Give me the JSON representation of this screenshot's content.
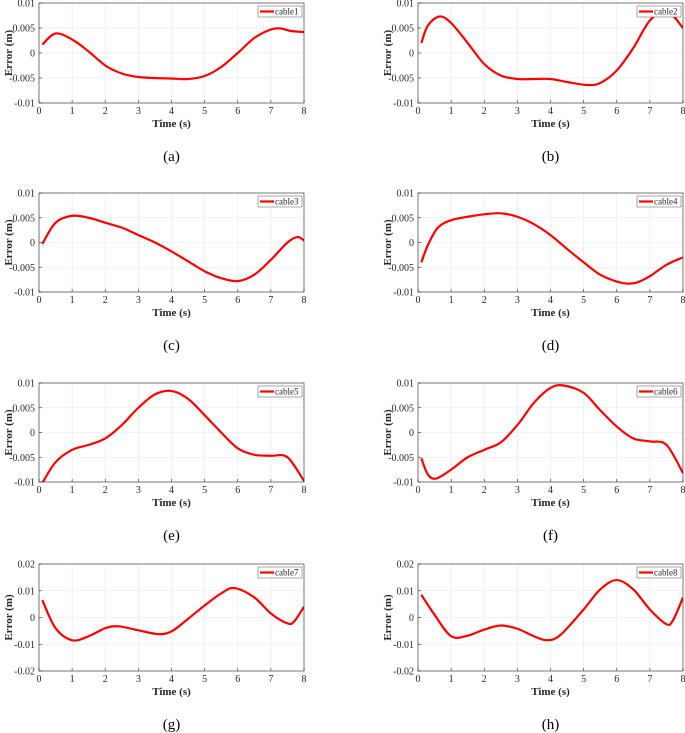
{
  "colors": {
    "line": "#ff0000",
    "grid": "#e6e6e6",
    "axis": "#262626"
  },
  "chart_data": [
    {
      "type": "line",
      "caption": "(a)",
      "legend": "cable1",
      "xlabel": "Time (s)",
      "ylabel": "Error (m)",
      "xlim": [
        0,
        8
      ],
      "ylim": [
        -0.01,
        0.01
      ],
      "xticks": [
        "0",
        "1",
        "2",
        "3",
        "4",
        "5",
        "6",
        "7",
        "8"
      ],
      "yticks": [
        "-0.01",
        "-0.005",
        "0",
        "0.005",
        "0.01"
      ],
      "grid": true,
      "legend_position": "top-right",
      "x": [
        0.1,
        0.5,
        1,
        1.5,
        2,
        2.5,
        3,
        3.5,
        4,
        4.5,
        5,
        5.5,
        6,
        6.5,
        7,
        7.3,
        7.6,
        8
      ],
      "y": [
        0.0017,
        0.0039,
        0.0027,
        0.0003,
        -0.0025,
        -0.0041,
        -0.0048,
        -0.005,
        -0.0051,
        -0.0052,
        -0.0046,
        -0.0028,
        0,
        0.003,
        0.0047,
        0.0049,
        0.0044,
        0.0042
      ]
    },
    {
      "type": "line",
      "caption": "(b)",
      "legend": "cable2",
      "xlabel": "Time (s)",
      "ylabel": "Error (m)",
      "xlim": [
        0,
        8
      ],
      "ylim": [
        -0.01,
        0.01
      ],
      "xticks": [
        "0",
        "1",
        "2",
        "3",
        "4",
        "5",
        "6",
        "7",
        "8"
      ],
      "yticks": [
        "-0.01",
        "-0.005",
        "0",
        "0.005",
        "0.01"
      ],
      "grid": true,
      "legend_position": "top-right",
      "x": [
        0.1,
        0.3,
        0.65,
        1,
        1.5,
        2,
        2.5,
        3,
        3.5,
        4,
        4.5,
        5.1,
        5.5,
        6,
        6.5,
        7,
        7.5,
        8
      ],
      "y": [
        0.002,
        0.0055,
        0.0073,
        0.006,
        0.002,
        -0.0022,
        -0.0045,
        -0.0052,
        -0.0052,
        -0.0052,
        -0.0058,
        -0.0064,
        -0.006,
        -0.0035,
        0.001,
        0.0065,
        0.0085,
        0.005
      ]
    },
    {
      "type": "line",
      "caption": "(c)",
      "legend": "cable3",
      "xlabel": "Time (s)",
      "ylabel": "Error (m)",
      "xlim": [
        0,
        8
      ],
      "ylim": [
        -0.01,
        0.01
      ],
      "xticks": [
        "0",
        "1",
        "2",
        "3",
        "4",
        "5",
        "6",
        "7",
        "8"
      ],
      "yticks": [
        "-0.01",
        "-0.005",
        "0",
        "0.005",
        "0.01"
      ],
      "grid": true,
      "legend_position": "top-right",
      "x": [
        0.1,
        0.5,
        1,
        1.5,
        2,
        2.5,
        3,
        3.5,
        4,
        4.5,
        5,
        5.5,
        6,
        6.5,
        7,
        7.5,
        7.8,
        8
      ],
      "y": [
        -0.0003,
        0.004,
        0.0054,
        0.005,
        0.004,
        0.003,
        0.0015,
        0,
        -0.0018,
        -0.0038,
        -0.0058,
        -0.0072,
        -0.0078,
        -0.0065,
        -0.0035,
        0,
        0.0011,
        0.0004
      ]
    },
    {
      "type": "line",
      "caption": "(d)",
      "legend": "cable4",
      "xlabel": "Time (s)",
      "ylabel": "Error (m)",
      "xlim": [
        0,
        8
      ],
      "ylim": [
        -0.01,
        0.01
      ],
      "xticks": [
        "0",
        "1",
        "2",
        "3",
        "4",
        "5",
        "6",
        "7",
        "8"
      ],
      "yticks": [
        "-0.01",
        "-0.005",
        "0",
        "0.005",
        "0.01"
      ],
      "grid": true,
      "legend_position": "top-right",
      "x": [
        0.1,
        0.3,
        0.6,
        1,
        1.5,
        2,
        2.5,
        3,
        3.5,
        4,
        4.5,
        5,
        5.5,
        6,
        6.3,
        6.6,
        7,
        7.5,
        8
      ],
      "y": [
        -0.004,
        -0.0005,
        0.003,
        0.0045,
        0.0052,
        0.0057,
        0.0059,
        0.0052,
        0.0037,
        0.0015,
        -0.0013,
        -0.004,
        -0.0065,
        -0.0079,
        -0.0083,
        -0.0081,
        -0.0068,
        -0.0045,
        -0.003
      ]
    },
    {
      "type": "line",
      "caption": "(e)",
      "legend": "cable5",
      "xlabel": "Time (s)",
      "ylabel": "Error (m)",
      "xlim": [
        0,
        8
      ],
      "ylim": [
        -0.01,
        0.01
      ],
      "xticks": [
        "0",
        "1",
        "2",
        "3",
        "4",
        "5",
        "6",
        "7",
        "8"
      ],
      "yticks": [
        "-0.01",
        "-0.005",
        "0",
        "0.005",
        "0.01"
      ],
      "grid": true,
      "legend_position": "top-right",
      "x": [
        0.1,
        0.5,
        1,
        1.5,
        2,
        2.5,
        3,
        3.5,
        4,
        4.5,
        5,
        5.5,
        6,
        6.5,
        7,
        7.5,
        8
      ],
      "y": [
        -0.0102,
        -0.006,
        -0.0035,
        -0.0025,
        -0.0012,
        0.0015,
        0.005,
        0.0077,
        0.0084,
        0.0068,
        0.0035,
        0,
        -0.0032,
        -0.0045,
        -0.0047,
        -0.005,
        -0.0098
      ]
    },
    {
      "type": "line",
      "caption": "(f)",
      "legend": "cable6",
      "xlabel": "Time (s)",
      "ylabel": "Error (m)",
      "xlim": [
        0,
        8
      ],
      "ylim": [
        -0.01,
        0.01
      ],
      "xticks": [
        "0",
        "1",
        "2",
        "3",
        "4",
        "5",
        "6",
        "7",
        "8"
      ],
      "yticks": [
        "-0.01",
        "-0.005",
        "0",
        "0.005",
        "0.01"
      ],
      "grid": true,
      "legend_position": "top-right",
      "x": [
        0.1,
        0.3,
        0.55,
        1,
        1.5,
        2,
        2.5,
        3,
        3.5,
        4,
        4.4,
        5,
        5.5,
        6,
        6.5,
        7,
        7.5,
        8
      ],
      "y": [
        -0.0052,
        -0.0085,
        -0.0093,
        -0.0075,
        -0.005,
        -0.0035,
        -0.002,
        0.0015,
        0.006,
        0.009,
        0.0095,
        0.008,
        0.0045,
        0.0012,
        -0.0012,
        -0.0018,
        -0.0025,
        -0.0082
      ]
    },
    {
      "type": "line",
      "caption": "(g)",
      "legend": "cable7",
      "xlabel": "Time (s)",
      "ylabel": "Error (m)",
      "xlim": [
        0,
        8
      ],
      "ylim": [
        -0.02,
        0.02
      ],
      "xticks": [
        "0",
        "1",
        "2",
        "3",
        "4",
        "5",
        "6",
        "7",
        "8"
      ],
      "yticks": [
        "-0.02",
        "-0.01",
        "0",
        "0.01",
        "0.02"
      ],
      "grid": true,
      "legend_position": "top-right",
      "x": [
        0.1,
        0.5,
        1,
        1.5,
        2,
        2.4,
        3,
        3.6,
        4,
        4.5,
        5,
        5.5,
        5.9,
        6.5,
        7,
        7.5,
        7.7,
        8
      ],
      "y": [
        0.0065,
        -0.004,
        -0.0085,
        -0.007,
        -0.004,
        -0.0033,
        -0.0048,
        -0.0062,
        -0.0052,
        -0.0005,
        0.0045,
        0.009,
        0.011,
        0.0075,
        0.0015,
        -0.0022,
        -0.0015,
        0.004
      ]
    },
    {
      "type": "line",
      "caption": "(h)",
      "legend": "cable8",
      "xlabel": "Time (s)",
      "ylabel": "Error (m)",
      "xlim": [
        0,
        8
      ],
      "ylim": [
        -0.02,
        0.02
      ],
      "xticks": [
        "0",
        "1",
        "2",
        "3",
        "4",
        "5",
        "6",
        "7",
        "8"
      ],
      "yticks": [
        "-0.02",
        "-0.01",
        "0",
        "0.01",
        "0.02"
      ],
      "grid": true,
      "legend_position": "top-right",
      "x": [
        0.1,
        0.5,
        1,
        1.5,
        2,
        2.5,
        3,
        3.5,
        3.9,
        4.3,
        5,
        5.5,
        6,
        6.5,
        7,
        7.5,
        7.7,
        8
      ],
      "y": [
        0.0085,
        0.001,
        -0.007,
        -0.0068,
        -0.0045,
        -0.003,
        -0.0042,
        -0.007,
        -0.0085,
        -0.0065,
        0.003,
        0.0105,
        0.014,
        0.0105,
        0.003,
        -0.0025,
        -0.001,
        0.0075
      ]
    }
  ]
}
